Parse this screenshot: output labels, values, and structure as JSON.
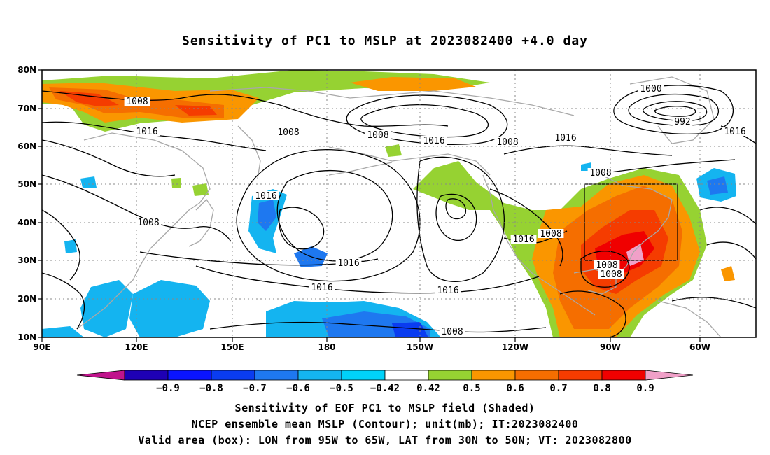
{
  "title": "Sensitivity of PC1 to MSLP at 2023082400 +4.0 day",
  "map": {
    "lon_ticks": [
      "90E",
      "120E",
      "150E",
      "180",
      "150W",
      "120W",
      "90W",
      "60W"
    ],
    "lat_ticks": [
      "80N",
      "70N",
      "60N",
      "50N",
      "40N",
      "30N",
      "20N",
      "10N"
    ],
    "contour_labels": [
      "1008",
      "1016",
      "1008",
      "1008",
      "1016",
      "1008",
      "1016",
      "992",
      "1000",
      "1016",
      "1008",
      "1016",
      "1008",
      "1016",
      "1016",
      "1016",
      "1008",
      "1016",
      "1008",
      "1008",
      "1008"
    ],
    "valid_box": {
      "lon_min": "95W",
      "lon_max": "65W",
      "lat_min": "30N",
      "lat_max": "50N"
    }
  },
  "colorbar": {
    "labels": [
      "-0.9",
      "-0.8",
      "-0.7",
      "-0.6",
      "-0.5",
      "-0.42",
      "0.42",
      "0.5",
      "0.6",
      "0.7",
      "0.8",
      "0.9"
    ],
    "colors": [
      "#c0148c",
      "#1e00b4",
      "#0a14ff",
      "#0a3cf0",
      "#1e78f0",
      "#14b4f0",
      "#00d2fa",
      "#ffffff",
      "#96d232",
      "#fa9600",
      "#f56e00",
      "#f53c00",
      "#f00000",
      "#f0a0c8"
    ]
  },
  "footer": {
    "line1": "Sensitivity of EOF PC1 to MSLP field (Shaded)",
    "line2": "NCEP ensemble mean MSLP (Contour); unit(mb); IT:2023082400",
    "line3": "Valid area (box): LON from 95W to 65W, LAT from 30N to 50N; VT: 2023082800"
  }
}
